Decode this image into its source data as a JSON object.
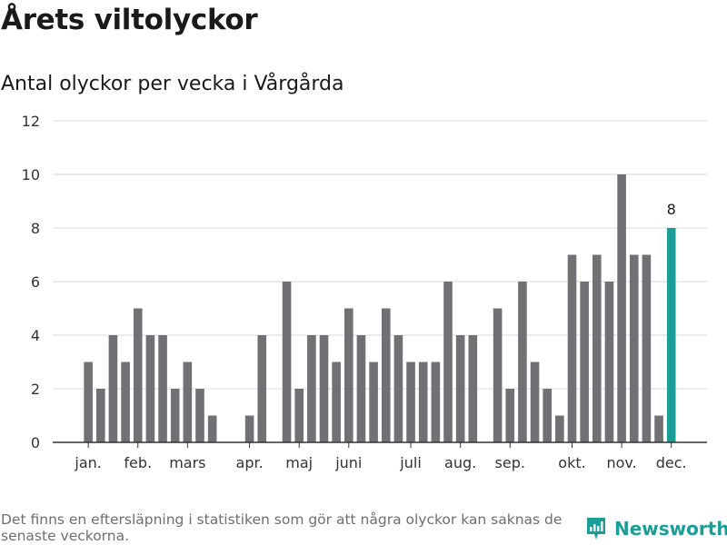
{
  "header": {
    "title": "Årets viltolyckor",
    "subtitle": "Antal olyckor per vecka i Vårgårda"
  },
  "footer": {
    "note": "Det finns en eftersläpning i statistiken som gör att några olyckor kan saknas de senaste veckorna.",
    "brand": "Newsworthy",
    "brand_icon": "newsworthy-logo-icon"
  },
  "colors": {
    "bar": "#717075",
    "highlight": "#1a9e97",
    "grid": "#d9d9d9",
    "axis": "#333333",
    "brand": "#1a9e97"
  },
  "chart_data": {
    "type": "bar",
    "x_unit": "week",
    "x": [
      1,
      2,
      3,
      4,
      5,
      6,
      7,
      8,
      9,
      10,
      11,
      12,
      13,
      14,
      15,
      16,
      17,
      18,
      19,
      20,
      21,
      22,
      23,
      24,
      25,
      26,
      27,
      28,
      29,
      30,
      31,
      32,
      33,
      34,
      35,
      36,
      37,
      38,
      39,
      40,
      41,
      42,
      43,
      44,
      45,
      46,
      47,
      48,
      49,
      50
    ],
    "values": [
      0,
      3,
      2,
      4,
      3,
      5,
      4,
      4,
      2,
      3,
      2,
      1,
      0,
      0,
      1,
      4,
      0,
      6,
      2,
      4,
      4,
      3,
      5,
      4,
      3,
      5,
      4,
      3,
      3,
      3,
      6,
      4,
      4,
      0,
      5,
      2,
      6,
      3,
      2,
      1,
      7,
      6,
      7,
      6,
      10,
      7,
      7,
      1,
      8,
      null
    ],
    "highlight_index": 48,
    "data_labels": [
      {
        "index": 48,
        "text": "8"
      }
    ],
    "month_ticks": [
      {
        "label": "jan.",
        "x": 2
      },
      {
        "label": "feb.",
        "x": 6
      },
      {
        "label": "mars",
        "x": 10
      },
      {
        "label": "apr.",
        "x": 15
      },
      {
        "label": "maj",
        "x": 19
      },
      {
        "label": "juni",
        "x": 23
      },
      {
        "label": "juli",
        "x": 28
      },
      {
        "label": "aug.",
        "x": 32
      },
      {
        "label": "sep.",
        "x": 36
      },
      {
        "label": "okt.",
        "x": 41
      },
      {
        "label": "nov.",
        "x": 45
      },
      {
        "label": "dec.",
        "x": 49
      }
    ],
    "yticks": [
      0,
      2,
      4,
      6,
      8,
      10,
      12
    ],
    "ylim": [
      0,
      12
    ],
    "grid": true,
    "legend": "none"
  }
}
